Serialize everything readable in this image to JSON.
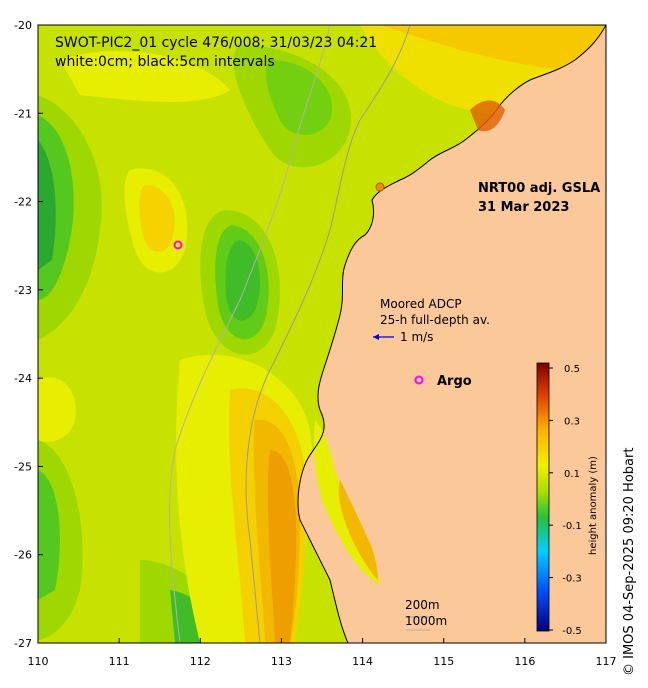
{
  "map": {
    "title_line1": "SWOT-PIC2_01 cycle 476/008; 31/03/23 04:21",
    "title_line2": "white:0cm; black:5cm intervals",
    "product_line1": "NRT00 adj. GSLA",
    "product_line2": "31 Mar 2023",
    "adcp_line1": "Moored ADCP",
    "adcp_line2": "25-h full-depth av.",
    "adcp_scale": "1 m/s",
    "argo_label": "Argo",
    "isobath_200": "200m",
    "isobath_1000": "1000m",
    "copyright": "© IMOS 04-Sep-2025 09:20 Hobart",
    "x_ticks": [
      "110",
      "111",
      "112",
      "113",
      "114",
      "115",
      "116",
      "117"
    ],
    "y_ticks": [
      "-20",
      "-21",
      "-22",
      "-23",
      "-24",
      "-25",
      "-26",
      "-27"
    ],
    "lon_range": [
      110,
      117
    ],
    "lat_range": [
      -27,
      -20
    ],
    "colors": {
      "land": "#fbc89a",
      "sea_high": "#f5d000",
      "sea_mid": "#b5e000",
      "sea_low": "#3ac23a",
      "argo": "#ff00ff",
      "adcp": "#0000cc"
    }
  },
  "colorbar": {
    "label": "height anomaly (m)",
    "ticks": [
      "0.5",
      "0.3",
      "0.1",
      "-0.1",
      "-0.3",
      "-0.5"
    ],
    "range": [
      -0.5,
      0.5
    ]
  }
}
